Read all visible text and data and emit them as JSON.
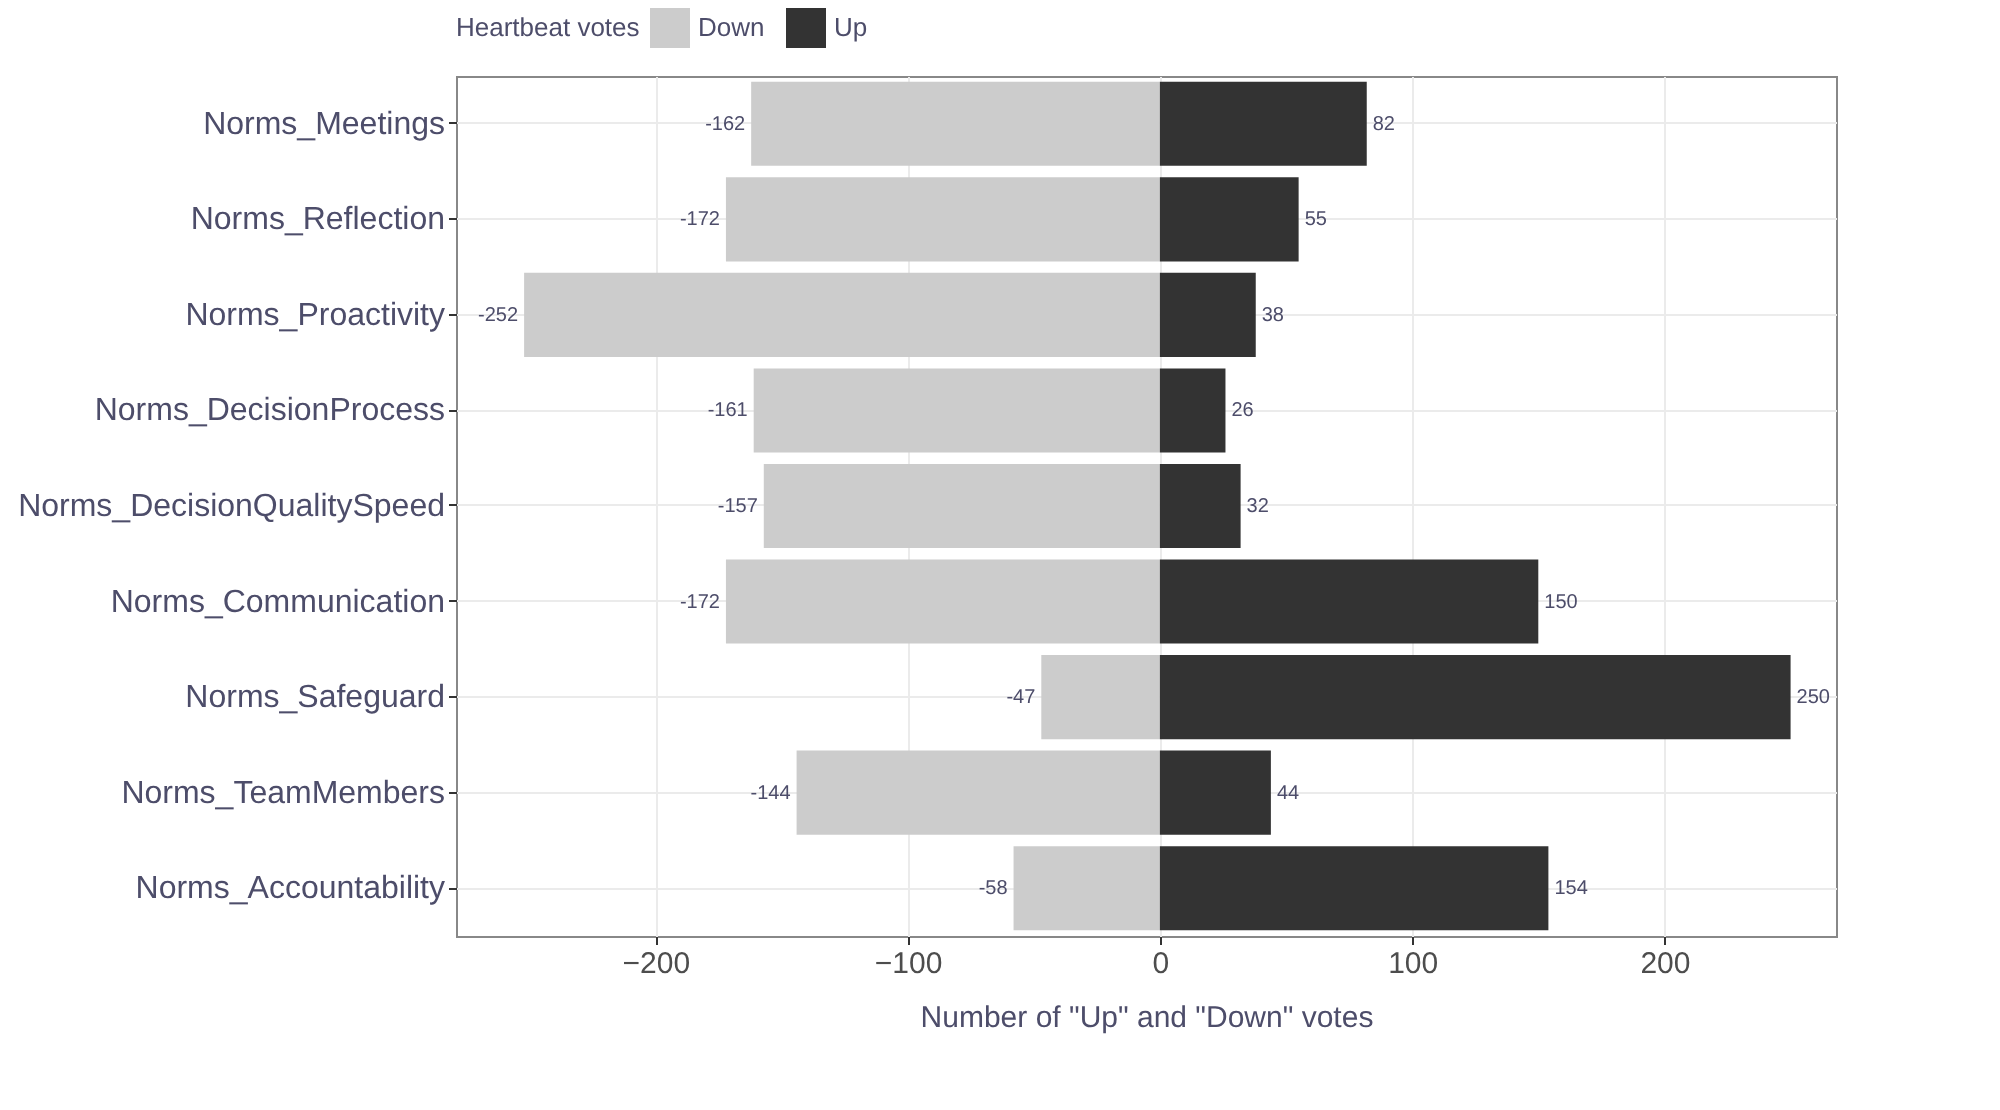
{
  "chart_data": {
    "type": "bar",
    "orientation": "horizontal",
    "stacked": true,
    "xlabel": "Number of \"Up\" and \"Down\" votes",
    "legend_title": "Heartbeat votes",
    "legend": "top",
    "categories": [
      "Norms_Meetings",
      "Norms_Reflection",
      "Norms_Proactivity",
      "Norms_DecisionProcess",
      "Norms_DecisionQualitySpeed",
      "Norms_Communication",
      "Norms_Safeguard",
      "Norms_TeamMembers",
      "Norms_Accountability"
    ],
    "series": [
      {
        "name": "Down",
        "color": "#cccccc",
        "values": [
          -162,
          -172,
          -252,
          -161,
          -157,
          -172,
          -47,
          -144,
          -58
        ]
      },
      {
        "name": "Up",
        "color": "#333333",
        "values": [
          82,
          55,
          38,
          26,
          32,
          150,
          250,
          44,
          154
        ]
      }
    ],
    "xlim": [
      -279,
      268
    ],
    "xticks": [
      -200,
      -100,
      0,
      100,
      200
    ],
    "grid": true,
    "data_labels": true
  }
}
